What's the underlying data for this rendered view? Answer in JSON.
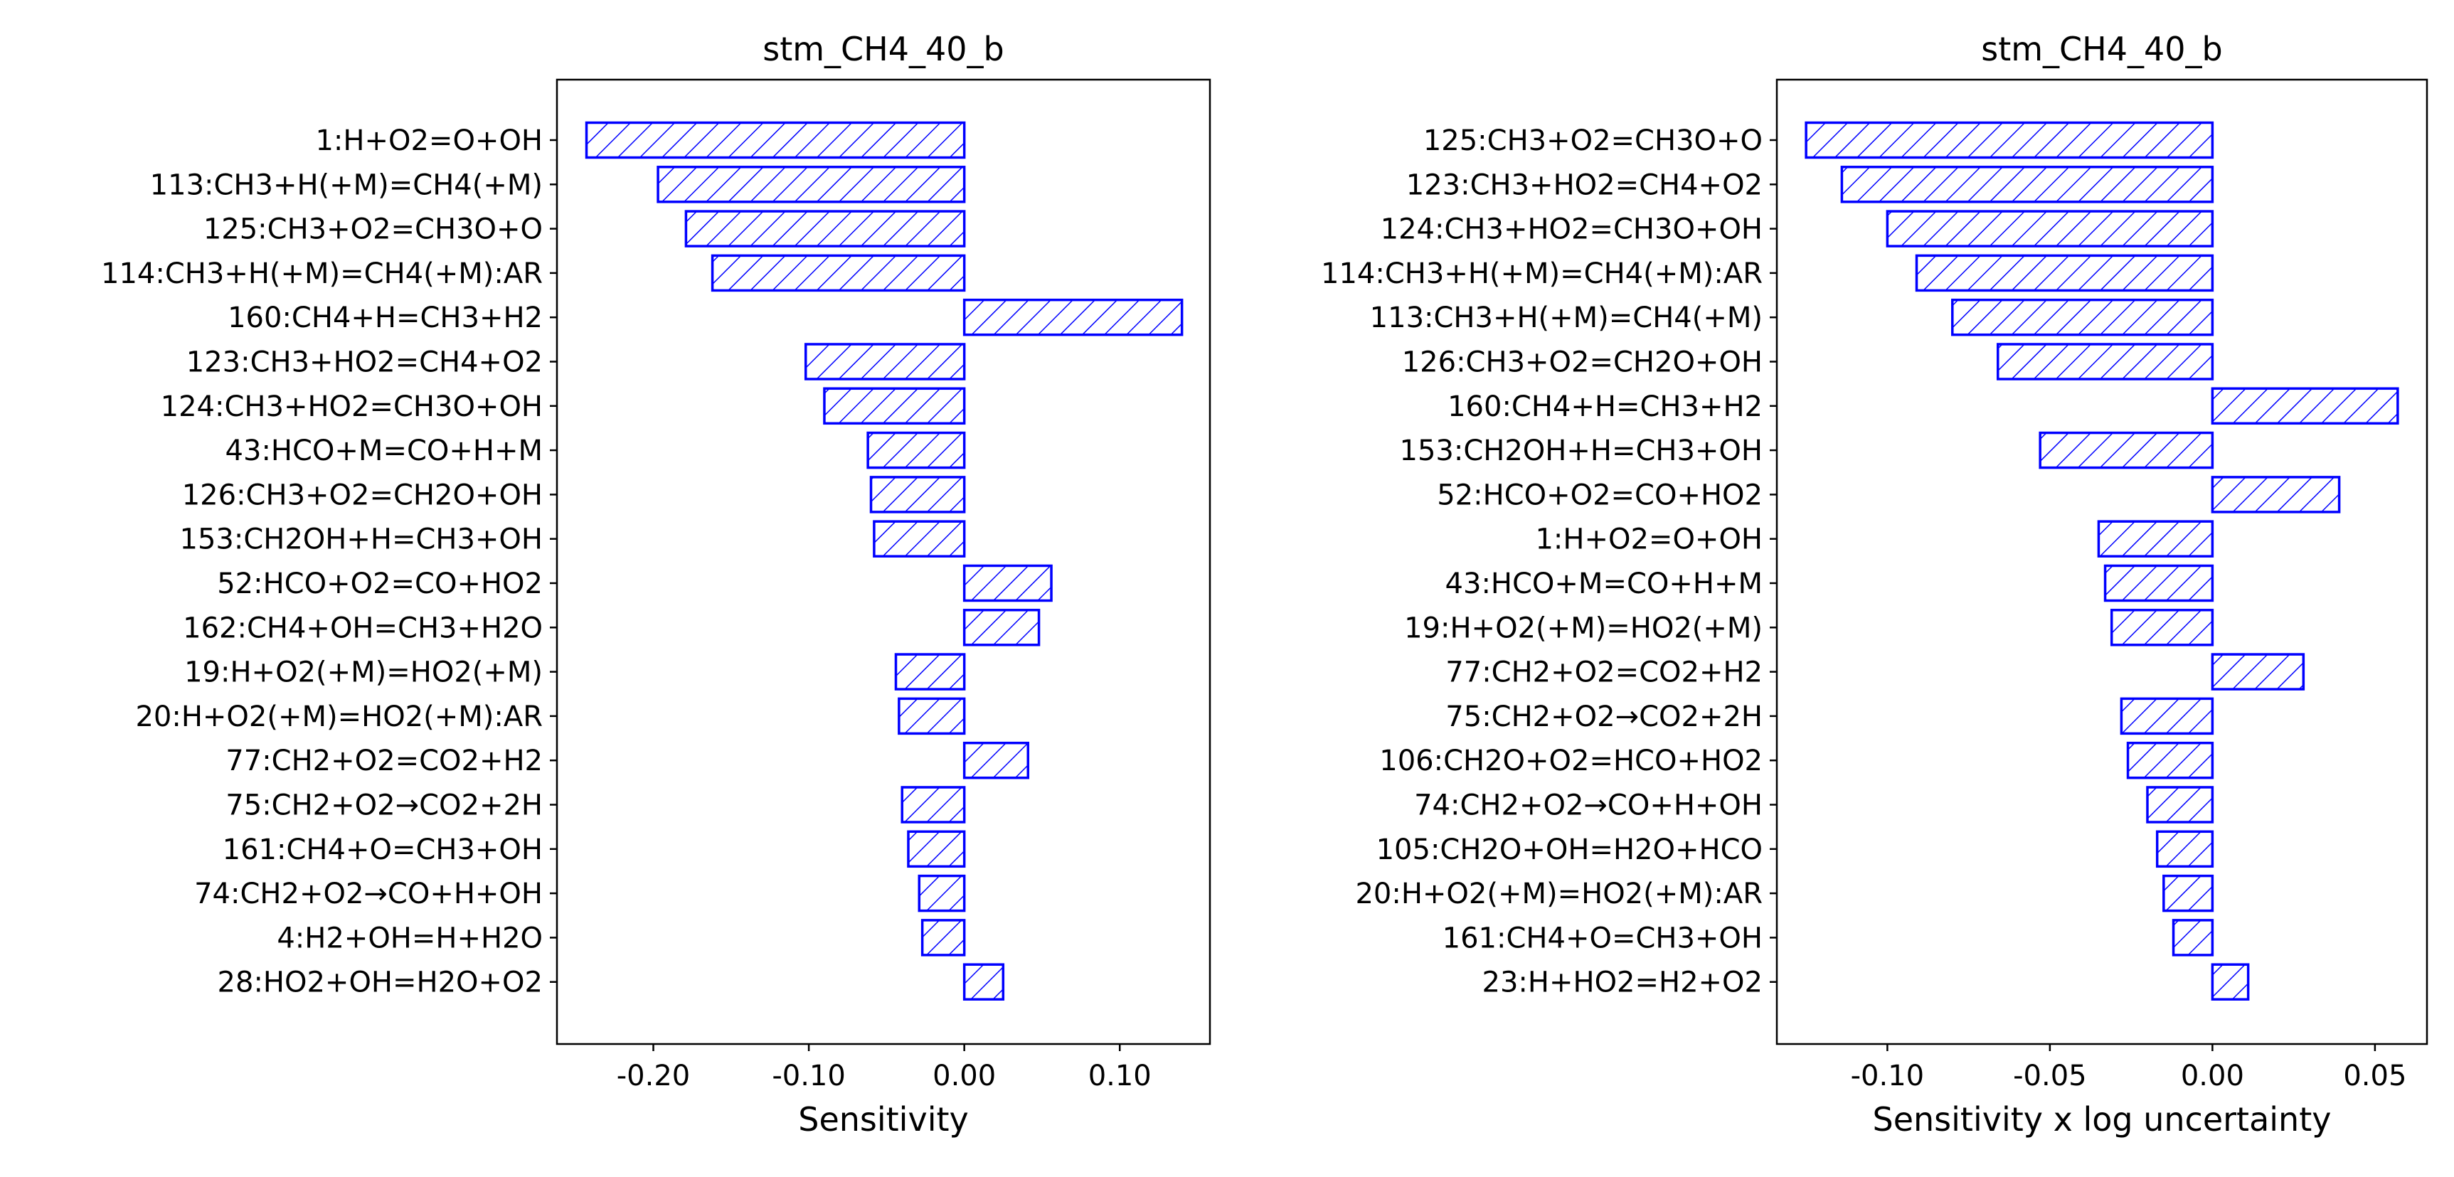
{
  "chart_data": [
    {
      "type": "bar",
      "orientation": "horizontal",
      "title": "stm_CH4_40_b",
      "xlabel": "Sensitivity",
      "ylabel": "",
      "xlim": [
        -0.262,
        0.158
      ],
      "xticks": [
        -0.2,
        -0.1,
        0.0,
        0.1
      ],
      "xtick_labels": [
        "-0.20",
        "-0.10",
        "0.00",
        "0.10"
      ],
      "categories": [
        "1:H+O2=O+OH",
        "113:CH3+H(+M)=CH4(+M)",
        "125:CH3+O2=CH3O+O",
        "114:CH3+H(+M)=CH4(+M):AR",
        "160:CH4+H=CH3+H2",
        "123:CH3+HO2=CH4+O2",
        "124:CH3+HO2=CH3O+OH",
        "43:HCO+M=CO+H+M",
        "126:CH3+O2=CH2O+OH",
        "153:CH2OH+H=CH3+OH",
        "52:HCO+O2=CO+HO2",
        "162:CH4+OH=CH3+H2O",
        "19:H+O2(+M)=HO2(+M)",
        "20:H+O2(+M)=HO2(+M):AR",
        "77:CH2+O2=CO2+H2",
        "75:CH2+O2→CO2+2H",
        "161:CH4+O=CH3+OH",
        "74:CH2+O2→CO+H+OH",
        "4:H2+OH=H+H2O",
        "28:HO2+OH=H2O+O2"
      ],
      "values": [
        -0.243,
        -0.197,
        -0.179,
        -0.162,
        0.14,
        -0.102,
        -0.09,
        -0.062,
        -0.06,
        -0.058,
        0.056,
        0.048,
        -0.044,
        -0.042,
        0.041,
        -0.04,
        -0.036,
        -0.029,
        -0.027,
        0.025
      ],
      "bar_color": "#0000ff",
      "hatch": "diagonal",
      "grid": false
    },
    {
      "type": "bar",
      "orientation": "horizontal",
      "title": "stm_CH4_40_b",
      "xlabel": "Sensitivity x log uncertainty",
      "ylabel": "",
      "xlim": [
        -0.134,
        0.066
      ],
      "xticks": [
        -0.1,
        -0.05,
        0.0,
        0.05
      ],
      "xtick_labels": [
        "-0.10",
        "-0.05",
        "0.00",
        "0.05"
      ],
      "categories": [
        "125:CH3+O2=CH3O+O",
        "123:CH3+HO2=CH4+O2",
        "124:CH3+HO2=CH3O+OH",
        "114:CH3+H(+M)=CH4(+M):AR",
        "113:CH3+H(+M)=CH4(+M)",
        "126:CH3+O2=CH2O+OH",
        "160:CH4+H=CH3+H2",
        "153:CH2OH+H=CH3+OH",
        "52:HCO+O2=CO+HO2",
        "1:H+O2=O+OH",
        "43:HCO+M=CO+H+M",
        "19:H+O2(+M)=HO2(+M)",
        "77:CH2+O2=CO2+H2",
        "75:CH2+O2→CO2+2H",
        "106:CH2O+O2=HCO+HO2",
        "74:CH2+O2→CO+H+OH",
        "105:CH2O+OH=H2O+HCO",
        "20:H+O2(+M)=HO2(+M):AR",
        "161:CH4+O=CH3+OH",
        "23:H+HO2=H2+O2"
      ],
      "values": [
        -0.125,
        -0.114,
        -0.1,
        -0.091,
        -0.08,
        -0.066,
        0.057,
        -0.053,
        0.039,
        -0.035,
        -0.033,
        -0.031,
        0.028,
        -0.028,
        -0.026,
        -0.02,
        -0.017,
        -0.015,
        -0.012,
        0.011
      ],
      "bar_color": "#0000ff",
      "hatch": "diagonal",
      "grid": false
    }
  ]
}
